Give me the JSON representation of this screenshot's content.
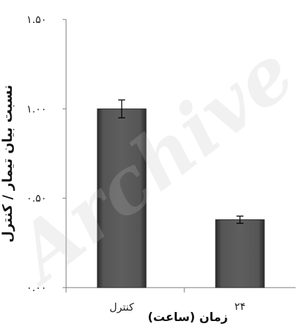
{
  "watermark": "Archive",
  "chart_data": {
    "type": "bar",
    "categories": [
      "کنترل",
      "۲۴"
    ],
    "values": [
      1.0,
      0.38
    ],
    "errors": [
      0.05,
      0.02
    ],
    "ylim": [
      0,
      1.5
    ],
    "yticks": [
      {
        "value": 0,
        "label": "۰.۰۰"
      },
      {
        "value": 0.5,
        "label": "۰.۵۰"
      },
      {
        "value": 1.0,
        "label": "۱.۰۰"
      },
      {
        "value": 1.5,
        "label": "۱.۵۰"
      }
    ],
    "ylabel": "نسبت بیان تیمار / کنترل",
    "xlabel": "زمان (ساعت)",
    "title": "",
    "grid": false,
    "bar_color": "#4a4a4a"
  }
}
